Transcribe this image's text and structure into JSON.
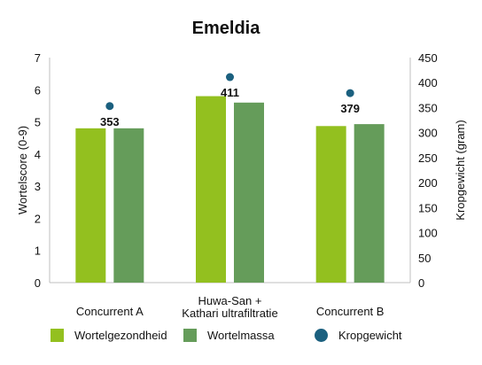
{
  "chart_data": {
    "type": "bar",
    "title": "Emeldia",
    "categories": [
      [
        "Concurrent A"
      ],
      [
        "Huwa-San +",
        "Kathari ultrafiltratie"
      ],
      [
        "Concurrent B"
      ]
    ],
    "series": [
      {
        "name": "Wortelgezondheid",
        "axis": "left",
        "color": "#93c01f",
        "values": [
          4.8,
          5.8,
          4.87
        ]
      },
      {
        "name": "Wortelmassa",
        "axis": "left",
        "color": "#659c5a",
        "values": [
          4.8,
          5.6,
          4.93
        ]
      },
      {
        "name": "Kropgewicht",
        "axis": "right",
        "kind": "point",
        "color": "#1b607f",
        "values": [
          353,
          411,
          379
        ],
        "labels": [
          "353",
          "411",
          "379"
        ]
      }
    ],
    "y_left": {
      "label": "Wortelscore (0-9)",
      "min": 0,
      "max": 7,
      "ticks": [
        0,
        1,
        2,
        3,
        4,
        5,
        6,
        7
      ]
    },
    "y_right": {
      "label": "Kropgewicht (gram)",
      "min": 0,
      "max": 450,
      "ticks": [
        0,
        50,
        100,
        150,
        200,
        250,
        300,
        350,
        400,
        450
      ]
    },
    "grid": false,
    "legend_position": "bottom"
  }
}
